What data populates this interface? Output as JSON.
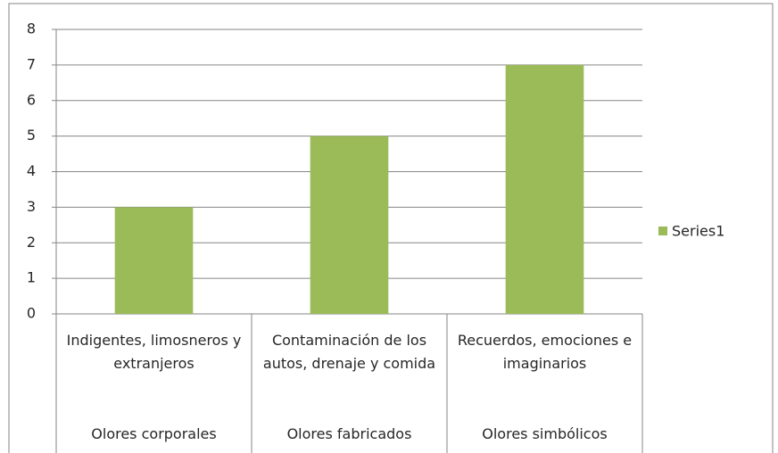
{
  "chart_data": {
    "type": "bar",
    "categories": [
      "Indigentes, limosneros y extranjeros",
      "Contaminación de los autos, drenaje y comida",
      "Recuerdos, emociones e imaginarios"
    ],
    "category_groups": [
      "Olores corporales",
      "Olores fabricados",
      "Olores simbólicos"
    ],
    "series": [
      {
        "name": "Series1",
        "color": "#9bbb59",
        "values": [
          3,
          5,
          7
        ]
      }
    ],
    "ylim": [
      0,
      8
    ],
    "yticks": [
      0,
      1,
      2,
      3,
      4,
      5,
      6,
      7,
      8
    ],
    "grid": true,
    "legend": "right"
  }
}
